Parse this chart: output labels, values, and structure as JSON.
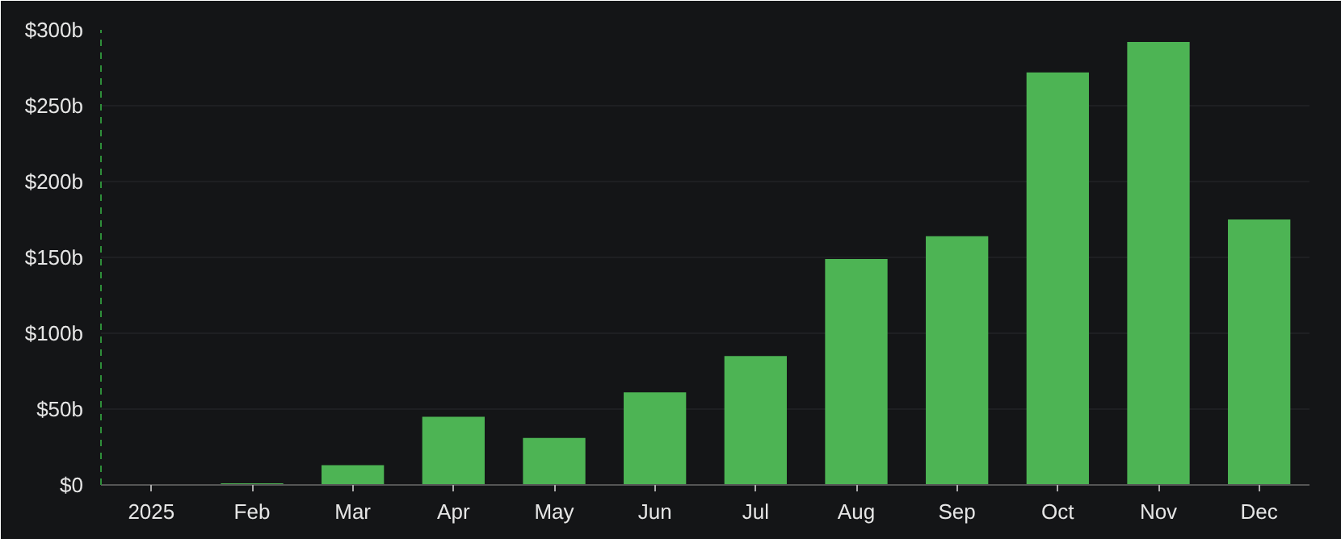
{
  "chart_data": {
    "type": "bar",
    "categories": [
      "2025",
      "Feb",
      "Mar",
      "Apr",
      "May",
      "Jun",
      "Jul",
      "Aug",
      "Sep",
      "Oct",
      "Nov",
      "Dec"
    ],
    "values": [
      0,
      1,
      13,
      45,
      31,
      61,
      85,
      149,
      164,
      272,
      292,
      175
    ],
    "color": "#4db454",
    "ylim": [
      0,
      300
    ],
    "yticks": [
      {
        "value": 0,
        "label": "$0"
      },
      {
        "value": 50,
        "label": "$50b"
      },
      {
        "value": 100,
        "label": "$100b"
      },
      {
        "value": 150,
        "label": "$150b"
      },
      {
        "value": 200,
        "label": "$200b"
      },
      {
        "value": 250,
        "label": "$250b"
      },
      {
        "value": 300,
        "label": "$300b"
      }
    ],
    "grid": "y"
  }
}
